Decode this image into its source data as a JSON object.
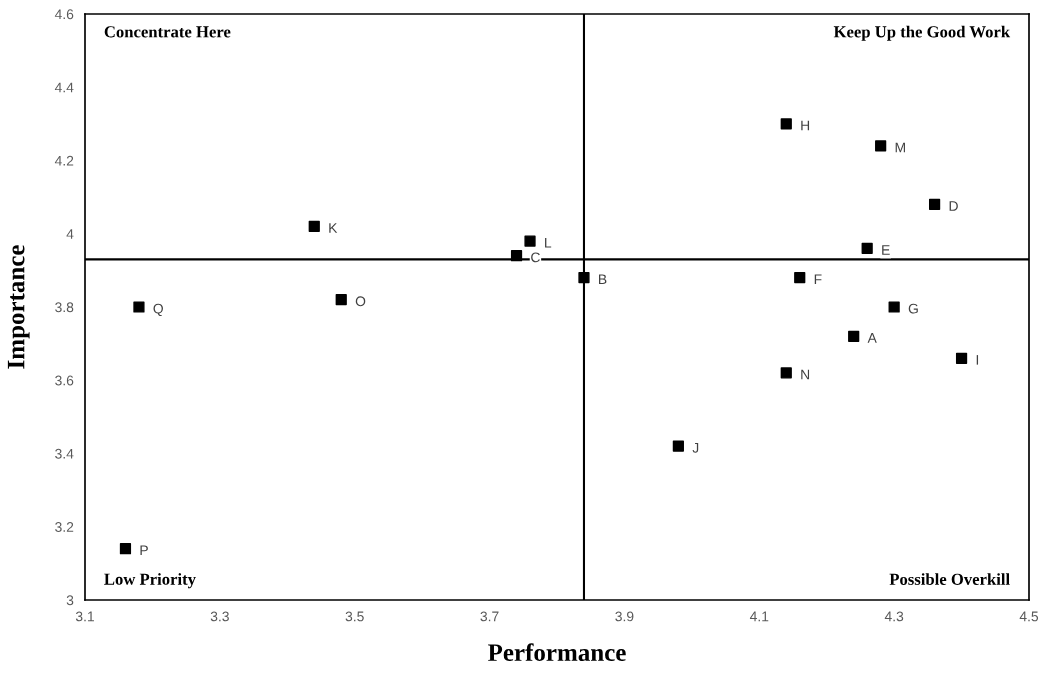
{
  "chart_data": {
    "type": "scatter",
    "xlabel": "Performance",
    "ylabel": "Importance",
    "x": [
      4.24,
      3.84,
      3.74,
      4.36,
      4.26,
      4.16,
      4.3,
      4.14,
      4.4,
      3.98,
      3.44,
      3.76,
      4.28,
      4.14,
      3.48,
      3.16,
      3.18
    ],
    "series": [
      {
        "color": "#000000",
        "values": [
          3.72,
          3.88,
          3.94,
          4.08,
          3.96,
          3.88,
          3.8,
          4.3,
          3.66,
          3.42,
          4.02,
          3.98,
          4.24,
          3.62,
          3.82,
          3.14,
          3.8
        ]
      }
    ],
    "marker": "square",
    "grid": false,
    "xlim": [
      3.1,
      4.5
    ],
    "xticks": [
      3.1,
      3.3,
      3.5,
      3.7,
      3.9,
      4.1,
      4.3,
      4.5
    ],
    "ylim": [
      3,
      4.6
    ],
    "yticks": [
      3,
      3.2,
      3.4,
      3.6,
      3.8,
      4,
      4.2,
      4.4,
      4.6
    ],
    "ref_lines": [
      {
        "axis": "x",
        "value": 3.84,
        "color": "#000000"
      },
      {
        "axis": "y",
        "value": 3.93,
        "color": "#000000"
      }
    ],
    "annotations": [
      {
        "text": "A",
        "x": 4.24,
        "y": 3.72
      },
      {
        "text": "B",
        "x": 3.84,
        "y": 3.88
      },
      {
        "text": "C",
        "x": 3.74,
        "y": 3.94
      },
      {
        "text": "D",
        "x": 4.36,
        "y": 4.08
      },
      {
        "text": "E",
        "x": 4.26,
        "y": 3.96
      },
      {
        "text": "F",
        "x": 4.16,
        "y": 3.88
      },
      {
        "text": "G",
        "x": 4.3,
        "y": 3.8
      },
      {
        "text": "H",
        "x": 4.14,
        "y": 4.3
      },
      {
        "text": "I",
        "x": 4.4,
        "y": 3.66
      },
      {
        "text": "J",
        "x": 3.98,
        "y": 3.42
      },
      {
        "text": "K",
        "x": 3.44,
        "y": 4.02
      },
      {
        "text": "L",
        "x": 3.76,
        "y": 3.98
      },
      {
        "text": "M",
        "x": 4.28,
        "y": 4.24
      },
      {
        "text": "N",
        "x": 4.14,
        "y": 3.62
      },
      {
        "text": "O",
        "x": 3.48,
        "y": 3.82
      },
      {
        "text": "P",
        "x": 3.16,
        "y": 3.14
      },
      {
        "text": "Q",
        "x": 3.18,
        "y": 3.8
      },
      "Concentrate Here",
      "Keep Up the Good Work",
      "Low Priority",
      "Possible Overkill"
    ]
  }
}
